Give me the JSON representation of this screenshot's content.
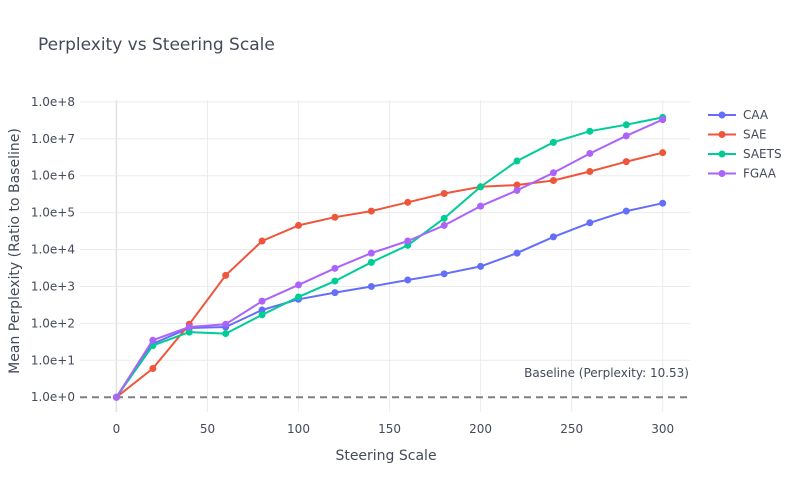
{
  "chart_data": {
    "type": "line",
    "title": "Perplexity vs Steering Scale",
    "xlabel": "Steering Scale",
    "ylabel": "Mean Perplexity (Ratio to Baseline)",
    "yscale": "log",
    "xlim": [
      -20,
      315
    ],
    "ylim_log10": [
      -0.4,
      8.05
    ],
    "x_ticks": [
      0,
      50,
      100,
      150,
      200,
      250,
      300
    ],
    "y_ticks": [
      {
        "value": 1,
        "label": "1.0e+0"
      },
      {
        "value": 10,
        "label": "1.0e+1"
      },
      {
        "value": 100,
        "label": "1.0e+2"
      },
      {
        "value": 1000,
        "label": "1.0e+3"
      },
      {
        "value": 10000,
        "label": "1.0e+4"
      },
      {
        "value": 100000,
        "label": "1.0e+5"
      },
      {
        "value": 1000000,
        "label": "1.0e+6"
      },
      {
        "value": 10000000,
        "label": "1.0e+7"
      },
      {
        "value": 100000000,
        "label": "1.0e+8"
      }
    ],
    "x": [
      0,
      20,
      40,
      60,
      80,
      100,
      120,
      140,
      160,
      180,
      200,
      220,
      240,
      260,
      280,
      300
    ],
    "series": [
      {
        "name": "CAA",
        "color": "#636efa",
        "values": [
          1,
          28,
          75,
          80,
          230,
          450,
          680,
          1000,
          1500,
          2200,
          3500,
          8000,
          22000,
          53000,
          110000,
          180000
        ]
      },
      {
        "name": "SAE",
        "color": "#ef553b",
        "values": [
          1,
          6,
          95,
          2000,
          17000,
          45000,
          75000,
          110000,
          190000,
          330000,
          500000,
          560000,
          740000,
          1300000,
          2400000,
          4200000
        ]
      },
      {
        "name": "SAETS",
        "color": "#00cc96",
        "values": [
          1,
          25,
          58,
          53,
          170,
          520,
          1400,
          4500,
          13000,
          70000,
          500000,
          2500000,
          8000000,
          16000000,
          24000000,
          38000000
        ]
      },
      {
        "name": "FGAA",
        "color": "#ab63fa",
        "values": [
          1,
          35,
          80,
          95,
          400,
          1100,
          3100,
          8000,
          17000,
          45000,
          150000,
          400000,
          1200000,
          4000000,
          12000000,
          33000000
        ]
      }
    ],
    "baseline": {
      "value": 1,
      "label": "Baseline (Perplexity: 10.53)",
      "color": "#808080"
    },
    "legend_position": "top-right",
    "grid": true
  }
}
